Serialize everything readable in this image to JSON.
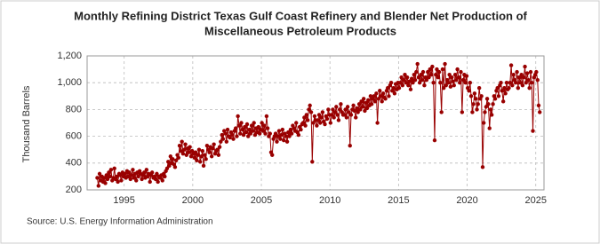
{
  "chart_data": {
    "type": "line",
    "title": [
      "Monthly Refining District Texas Gulf Coast Refinery and Blender Net Production of",
      "Miscellaneous Petroleum Products"
    ],
    "y_label": "Thousand Barrels",
    "source": "Source: U.S. Energy Information Administration",
    "grid": true,
    "xlim": [
      1992.3,
      2025.6
    ],
    "xticks": [
      1995,
      2000,
      2005,
      2010,
      2015,
      2020,
      2025
    ],
    "ylim": [
      200,
      1200
    ],
    "yticks": [
      200,
      400,
      600,
      800,
      {
        "value": 1000,
        "label": "1,000"
      },
      {
        "value": 1200,
        "label": "1,200"
      }
    ],
    "x": [
      1993.04,
      1993.13,
      1993.21,
      1993.29,
      1993.38,
      1993.46,
      1993.54,
      1993.63,
      1993.71,
      1993.79,
      1993.88,
      1993.96,
      1994.04,
      1994.13,
      1994.21,
      1994.29,
      1994.38,
      1994.46,
      1994.54,
      1994.63,
      1994.71,
      1994.79,
      1994.88,
      1994.96,
      1995.04,
      1995.13,
      1995.21,
      1995.29,
      1995.38,
      1995.46,
      1995.54,
      1995.63,
      1995.71,
      1995.79,
      1995.88,
      1995.96,
      1996.04,
      1996.13,
      1996.21,
      1996.29,
      1996.38,
      1996.46,
      1996.54,
      1996.63,
      1996.71,
      1996.79,
      1996.88,
      1996.96,
      1997.04,
      1997.13,
      1997.21,
      1997.29,
      1997.38,
      1997.46,
      1997.54,
      1997.63,
      1997.71,
      1997.79,
      1997.88,
      1997.96,
      1998.04,
      1998.13,
      1998.21,
      1998.29,
      1998.38,
      1998.46,
      1998.54,
      1998.63,
      1998.71,
      1998.79,
      1998.88,
      1998.96,
      1999.04,
      1999.13,
      1999.21,
      1999.29,
      1999.38,
      1999.46,
      1999.54,
      1999.63,
      1999.71,
      1999.79,
      1999.88,
      1999.96,
      2000.04,
      2000.13,
      2000.21,
      2000.29,
      2000.38,
      2000.46,
      2000.54,
      2000.63,
      2000.71,
      2000.79,
      2000.88,
      2000.96,
      2001.04,
      2001.13,
      2001.21,
      2001.29,
      2001.38,
      2001.46,
      2001.54,
      2001.63,
      2001.71,
      2001.79,
      2001.88,
      2001.96,
      2002.04,
      2002.13,
      2002.21,
      2002.29,
      2002.38,
      2002.46,
      2002.54,
      2002.63,
      2002.71,
      2002.79,
      2002.88,
      2002.96,
      2003.04,
      2003.13,
      2003.21,
      2003.29,
      2003.38,
      2003.46,
      2003.54,
      2003.63,
      2003.71,
      2003.79,
      2003.88,
      2003.96,
      2004.04,
      2004.13,
      2004.21,
      2004.29,
      2004.38,
      2004.46,
      2004.54,
      2004.63,
      2004.71,
      2004.79,
      2004.88,
      2004.96,
      2005.04,
      2005.13,
      2005.21,
      2005.29,
      2005.38,
      2005.46,
      2005.54,
      2005.63,
      2005.71,
      2005.79,
      2005.88,
      2005.96,
      2006.04,
      2006.13,
      2006.21,
      2006.29,
      2006.38,
      2006.46,
      2006.54,
      2006.63,
      2006.71,
      2006.79,
      2006.88,
      2006.96,
      2007.04,
      2007.13,
      2007.21,
      2007.29,
      2007.38,
      2007.46,
      2007.54,
      2007.63,
      2007.71,
      2007.79,
      2007.88,
      2007.96,
      2008.04,
      2008.13,
      2008.21,
      2008.29,
      2008.38,
      2008.46,
      2008.54,
      2008.63,
      2008.71,
      2008.79,
      2008.88,
      2008.96,
      2009.04,
      2009.13,
      2009.21,
      2009.29,
      2009.38,
      2009.46,
      2009.54,
      2009.63,
      2009.71,
      2009.79,
      2009.88,
      2009.96,
      2010.04,
      2010.13,
      2010.21,
      2010.29,
      2010.38,
      2010.46,
      2010.54,
      2010.63,
      2010.71,
      2010.79,
      2010.88,
      2010.96,
      2011.04,
      2011.13,
      2011.21,
      2011.29,
      2011.38,
      2011.46,
      2011.54,
      2011.63,
      2011.71,
      2011.79,
      2011.88,
      2011.96,
      2012.04,
      2012.13,
      2012.21,
      2012.29,
      2012.38,
      2012.46,
      2012.54,
      2012.63,
      2012.71,
      2012.79,
      2012.88,
      2012.96,
      2013.04,
      2013.13,
      2013.21,
      2013.29,
      2013.38,
      2013.46,
      2013.54,
      2013.63,
      2013.71,
      2013.79,
      2013.88,
      2013.96,
      2014.04,
      2014.13,
      2014.21,
      2014.29,
      2014.38,
      2014.46,
      2014.54,
      2014.63,
      2014.71,
      2014.79,
      2014.88,
      2014.96,
      2015.04,
      2015.13,
      2015.21,
      2015.29,
      2015.38,
      2015.46,
      2015.54,
      2015.63,
      2015.71,
      2015.79,
      2015.88,
      2015.96,
      2016.04,
      2016.13,
      2016.21,
      2016.29,
      2016.38,
      2016.46,
      2016.54,
      2016.63,
      2016.71,
      2016.79,
      2016.88,
      2016.96,
      2017.04,
      2017.13,
      2017.21,
      2017.29,
      2017.38,
      2017.46,
      2017.54,
      2017.63,
      2017.71,
      2017.79,
      2017.88,
      2017.96,
      2018.04,
      2018.13,
      2018.21,
      2018.29,
      2018.38,
      2018.46,
      2018.54,
      2018.63,
      2018.71,
      2018.79,
      2018.88,
      2018.96,
      2019.04,
      2019.13,
      2019.21,
      2019.29,
      2019.38,
      2019.46,
      2019.54,
      2019.63,
      2019.71,
      2019.79,
      2019.88,
      2019.96,
      2020.04,
      2020.13,
      2020.21,
      2020.29,
      2020.38,
      2020.46,
      2020.54,
      2020.63,
      2020.71,
      2020.79,
      2020.88,
      2020.96,
      2021.04,
      2021.13,
      2021.21,
      2021.29,
      2021.38,
      2021.46,
      2021.54,
      2021.63,
      2021.71,
      2021.79,
      2021.88,
      2021.96,
      2022.04,
      2022.13,
      2022.21,
      2022.29,
      2022.38,
      2022.46,
      2022.54,
      2022.63,
      2022.71,
      2022.79,
      2022.88,
      2022.96,
      2023.04,
      2023.13,
      2023.21,
      2023.29,
      2023.38,
      2023.46,
      2023.54,
      2023.63,
      2023.71,
      2023.79,
      2023.88,
      2023.96,
      2024.04,
      2024.13,
      2024.21,
      2024.29,
      2024.38,
      2024.46,
      2024.54,
      2024.63,
      2024.71,
      2024.79,
      2024.88,
      2024.96,
      2025.04,
      2025.13,
      2025.21,
      2025.29
    ],
    "series": [
      {
        "color": "#990000",
        "values": [
          290,
          230,
          320,
          270,
          300,
          260,
          290,
          250,
          310,
          280,
          330,
          300,
          350,
          270,
          290,
          360,
          280,
          300,
          260,
          320,
          310,
          270,
          330,
          300,
          320,
          290,
          340,
          300,
          330,
          280,
          310,
          350,
          290,
          320,
          270,
          330,
          300,
          340,
          320,
          280,
          310,
          330,
          290,
          350,
          300,
          320,
          260,
          310,
          330,
          290,
          300,
          280,
          320,
          260,
          300,
          290,
          310,
          270,
          320,
          300,
          340,
          360,
          410,
          380,
          450,
          400,
          430,
          390,
          370,
          420,
          460,
          440,
          530,
          490,
          560,
          470,
          500,
          540,
          460,
          510,
          480,
          520,
          450,
          490,
          470,
          440,
          480,
          420,
          460,
          500,
          410,
          450,
          490,
          380,
          460,
          430,
          530,
          500,
          480,
          520,
          450,
          510,
          540,
          470,
          490,
          500,
          460,
          520,
          560,
          610,
          580,
          640,
          620,
          560,
          650,
          600,
          590,
          630,
          610,
          580,
          640,
          660,
          600,
          750,
          680,
          620,
          700,
          650,
          610,
          670,
          630,
          690,
          600,
          650,
          620,
          680,
          640,
          700,
          610,
          660,
          630,
          670,
          620,
          650,
          700,
          640,
          680,
          620,
          750,
          660,
          600,
          620,
          480,
          460,
          580,
          600,
          620,
          560,
          600,
          640,
          580,
          610,
          650,
          570,
          620,
          600,
          560,
          630,
          600,
          650,
          620,
          680,
          660,
          640,
          700,
          630,
          610,
          670,
          650,
          690,
          700,
          740,
          680,
          760,
          720,
          800,
          830,
          780,
          410,
          700,
          750,
          720,
          680,
          720,
          760,
          700,
          740,
          780,
          710,
          690,
          750,
          730,
          800,
          760,
          700,
          760,
          800,
          740,
          780,
          820,
          760,
          720,
          800,
          840,
          780,
          760,
          760,
          800,
          740,
          820,
          780,
          530,
          760,
          800,
          830,
          790,
          740,
          810,
          780,
          840,
          800,
          860,
          820,
          880,
          790,
          850,
          810,
          870,
          830,
          900,
          840,
          880,
          900,
          860,
          920,
          700,
          880,
          940,
          900,
          860,
          920,
          890,
          880,
          940,
          960,
          900,
          980,
          1000,
          940,
          960,
          920,
          990,
          950,
          1000,
          960,
          1000,
          1040,
          980,
          1020,
          1060,
          1000,
          1040,
          980,
          1010,
          950,
          1030,
          1000,
          1060,
          1020,
          1080,
          1140,
          1040,
          1000,
          1060,
          1020,
          1080,
          980,
          1040,
          1020,
          1080,
          1040,
          1100,
          1060,
          1120,
          1000,
          570,
          1060,
          1100,
          1040,
          1080,
          1000,
          780,
          1100,
          960,
          1140,
          980,
          1020,
          1000,
          1060,
          970,
          1040,
          1010,
          980,
          1060,
          1020,
          1100,
          1040,
          1000,
          1080,
          780,
          1020,
          1060,
          1000,
          1050,
          960,
          940,
          1000,
          900,
          780,
          840,
          920,
          880,
          800,
          840,
          960,
          880,
          900,
          370,
          700,
          780,
          820,
          880,
          840,
          660,
          800,
          760,
          840,
          900,
          880,
          940,
          960,
          900,
          980,
          1000,
          940,
          860,
          960,
          920,
          1000,
          950,
          960,
          1000,
          1130,
          980,
          1060,
          1020,
          1000,
          1080,
          960,
          1040,
          1000,
          1060,
          980,
          1040,
          1120,
          1000,
          1070,
          1020,
          960,
          1080,
          1000,
          640,
          1040,
          1060,
          1080,
          1020,
          830,
          780
        ]
      }
    ]
  }
}
